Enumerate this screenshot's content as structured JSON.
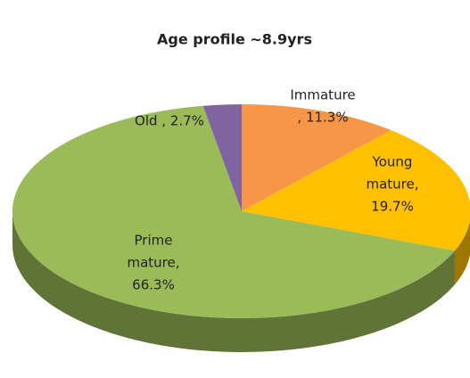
{
  "chart_data": {
    "type": "pie3d",
    "title": "Age profile ~8.9yrs",
    "values": [
      11.3,
      19.7,
      66.3,
      2.7
    ],
    "value_labels": [
      [
        "Immature",
        ", 11.3%"
      ],
      [
        "Young",
        "mature,",
        "19.7%"
      ],
      [
        "Prime",
        "mature,",
        "66.3%"
      ],
      [
        "Old , 2.7%"
      ]
    ],
    "colors": [
      "#f79646",
      "#ffc000",
      "#9bbb59",
      "#8064a2"
    ]
  }
}
